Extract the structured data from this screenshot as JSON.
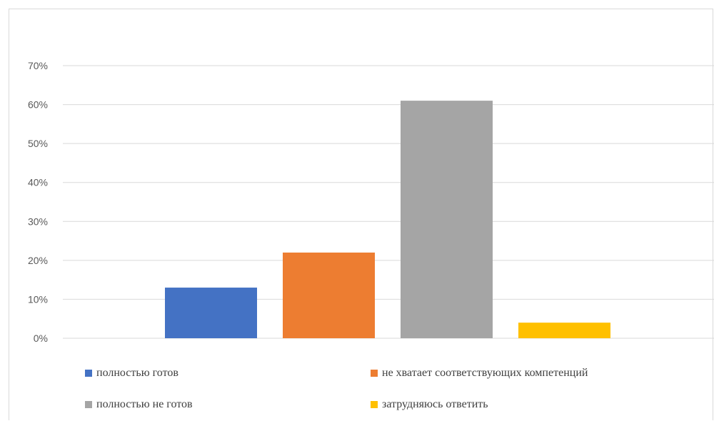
{
  "chart_data": {
    "type": "bar",
    "title": "",
    "xlabel": "",
    "ylabel": "",
    "ylim": [
      0,
      70
    ],
    "y_ticks": [
      0,
      10,
      20,
      30,
      40,
      50,
      60,
      70
    ],
    "y_tick_labels": [
      "0%",
      "10%",
      "20%",
      "30%",
      "40%",
      "50%",
      "60%",
      "70%"
    ],
    "grid": true,
    "legend_position": "bottom",
    "series": [
      {
        "name": "полностью готов",
        "value": 13,
        "color": "#4472c4"
      },
      {
        "name": "не хватает соответствующих компетенций",
        "value": 22,
        "color": "#ed7d31"
      },
      {
        "name": "полностью не готов",
        "value": 61,
        "color": "#a5a5a5"
      },
      {
        "name": "затрудняюсь ответить",
        "value": 4,
        "color": "#ffc000"
      }
    ]
  }
}
